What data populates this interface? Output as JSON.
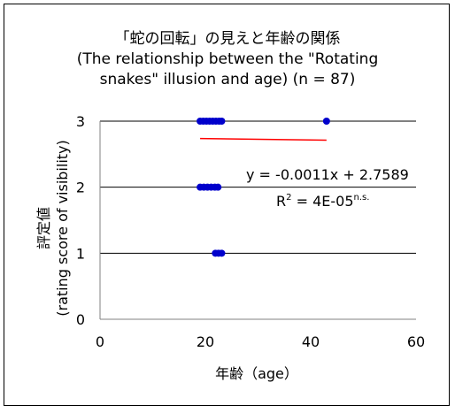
{
  "chart_data": {
    "type": "scatter",
    "title": [
      "「蛇の回転」の見えと年齢の関係",
      "(The relationship between the \"Rotating",
      "snakes\" illusion and age) (n = 87)"
    ],
    "xlabel": "年齢（age）",
    "ylabel": [
      "評定値",
      "(rating score of visibility)"
    ],
    "xlim": [
      0,
      60
    ],
    "ylim": [
      0,
      3
    ],
    "xticks": [
      "0",
      "20",
      "40",
      "60"
    ],
    "yticks": [
      "0",
      "1",
      "2",
      "3"
    ],
    "grid": {
      "horizontal_major": true,
      "vertical": false
    },
    "points": [
      {
        "x": 19,
        "y": 3
      },
      {
        "x": 19.6,
        "y": 3
      },
      {
        "x": 20.2,
        "y": 3
      },
      {
        "x": 20.8,
        "y": 3
      },
      {
        "x": 21.4,
        "y": 3
      },
      {
        "x": 22,
        "y": 3
      },
      {
        "x": 22.6,
        "y": 3
      },
      {
        "x": 23.1,
        "y": 3
      },
      {
        "x": 43,
        "y": 3
      },
      {
        "x": 19,
        "y": 2
      },
      {
        "x": 19.7,
        "y": 2
      },
      {
        "x": 20.4,
        "y": 2
      },
      {
        "x": 21.1,
        "y": 2
      },
      {
        "x": 21.8,
        "y": 2
      },
      {
        "x": 22.4,
        "y": 2
      },
      {
        "x": 21.9,
        "y": 1
      },
      {
        "x": 22.5,
        "y": 1
      },
      {
        "x": 23.1,
        "y": 1
      }
    ],
    "point_color": "#0000cc",
    "trendline": {
      "slope": -0.0011,
      "intercept": 2.7589,
      "x_range": [
        19,
        43
      ],
      "color": "#ff0000"
    },
    "annotations": {
      "equation": "y = -0.0011x + 2.7589",
      "r2_prefix": "R",
      "r2_sup": "2",
      "r2_value": " = 4E-05",
      "r2_significance": "n.s."
    }
  }
}
